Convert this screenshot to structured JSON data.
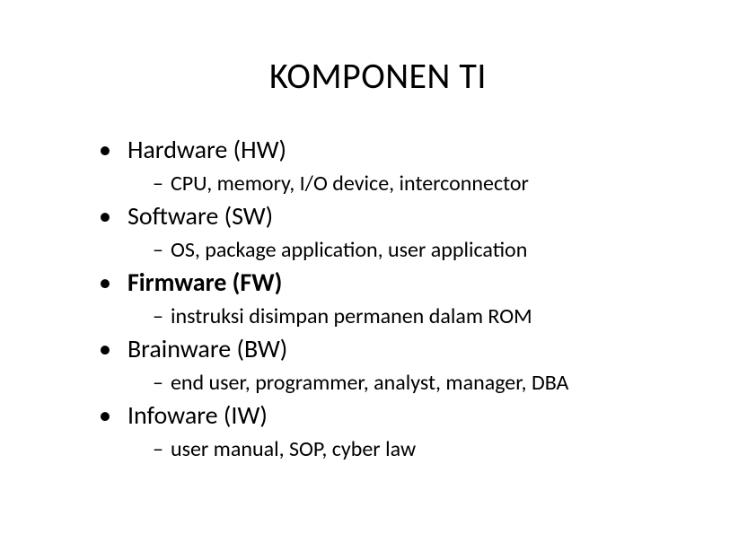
{
  "slide": {
    "title": "KOMPONEN TI",
    "title_fontsize": 40,
    "item_fontsize": 28,
    "sub_fontsize": 24,
    "background_color": "#ffffff",
    "text_color": "#000000",
    "bullet_char": "•",
    "dash_char": "–",
    "items": [
      {
        "title": "Hardware (HW)",
        "bold": false,
        "sub": "CPU, memory, I/O device, interconnector"
      },
      {
        "title": "Software (SW)",
        "bold": false,
        "sub": "OS, package application, user application"
      },
      {
        "title": "Firmware (FW)",
        "bold": true,
        "sub": "instruksi disimpan permanen dalam ROM"
      },
      {
        "title": "Brainware (BW)",
        "bold": false,
        "sub": "end user, programmer, analyst, manager, DBA"
      },
      {
        "title": "Infoware (IW)",
        "bold": false,
        "sub": "user manual, SOP, cyber law"
      }
    ]
  }
}
